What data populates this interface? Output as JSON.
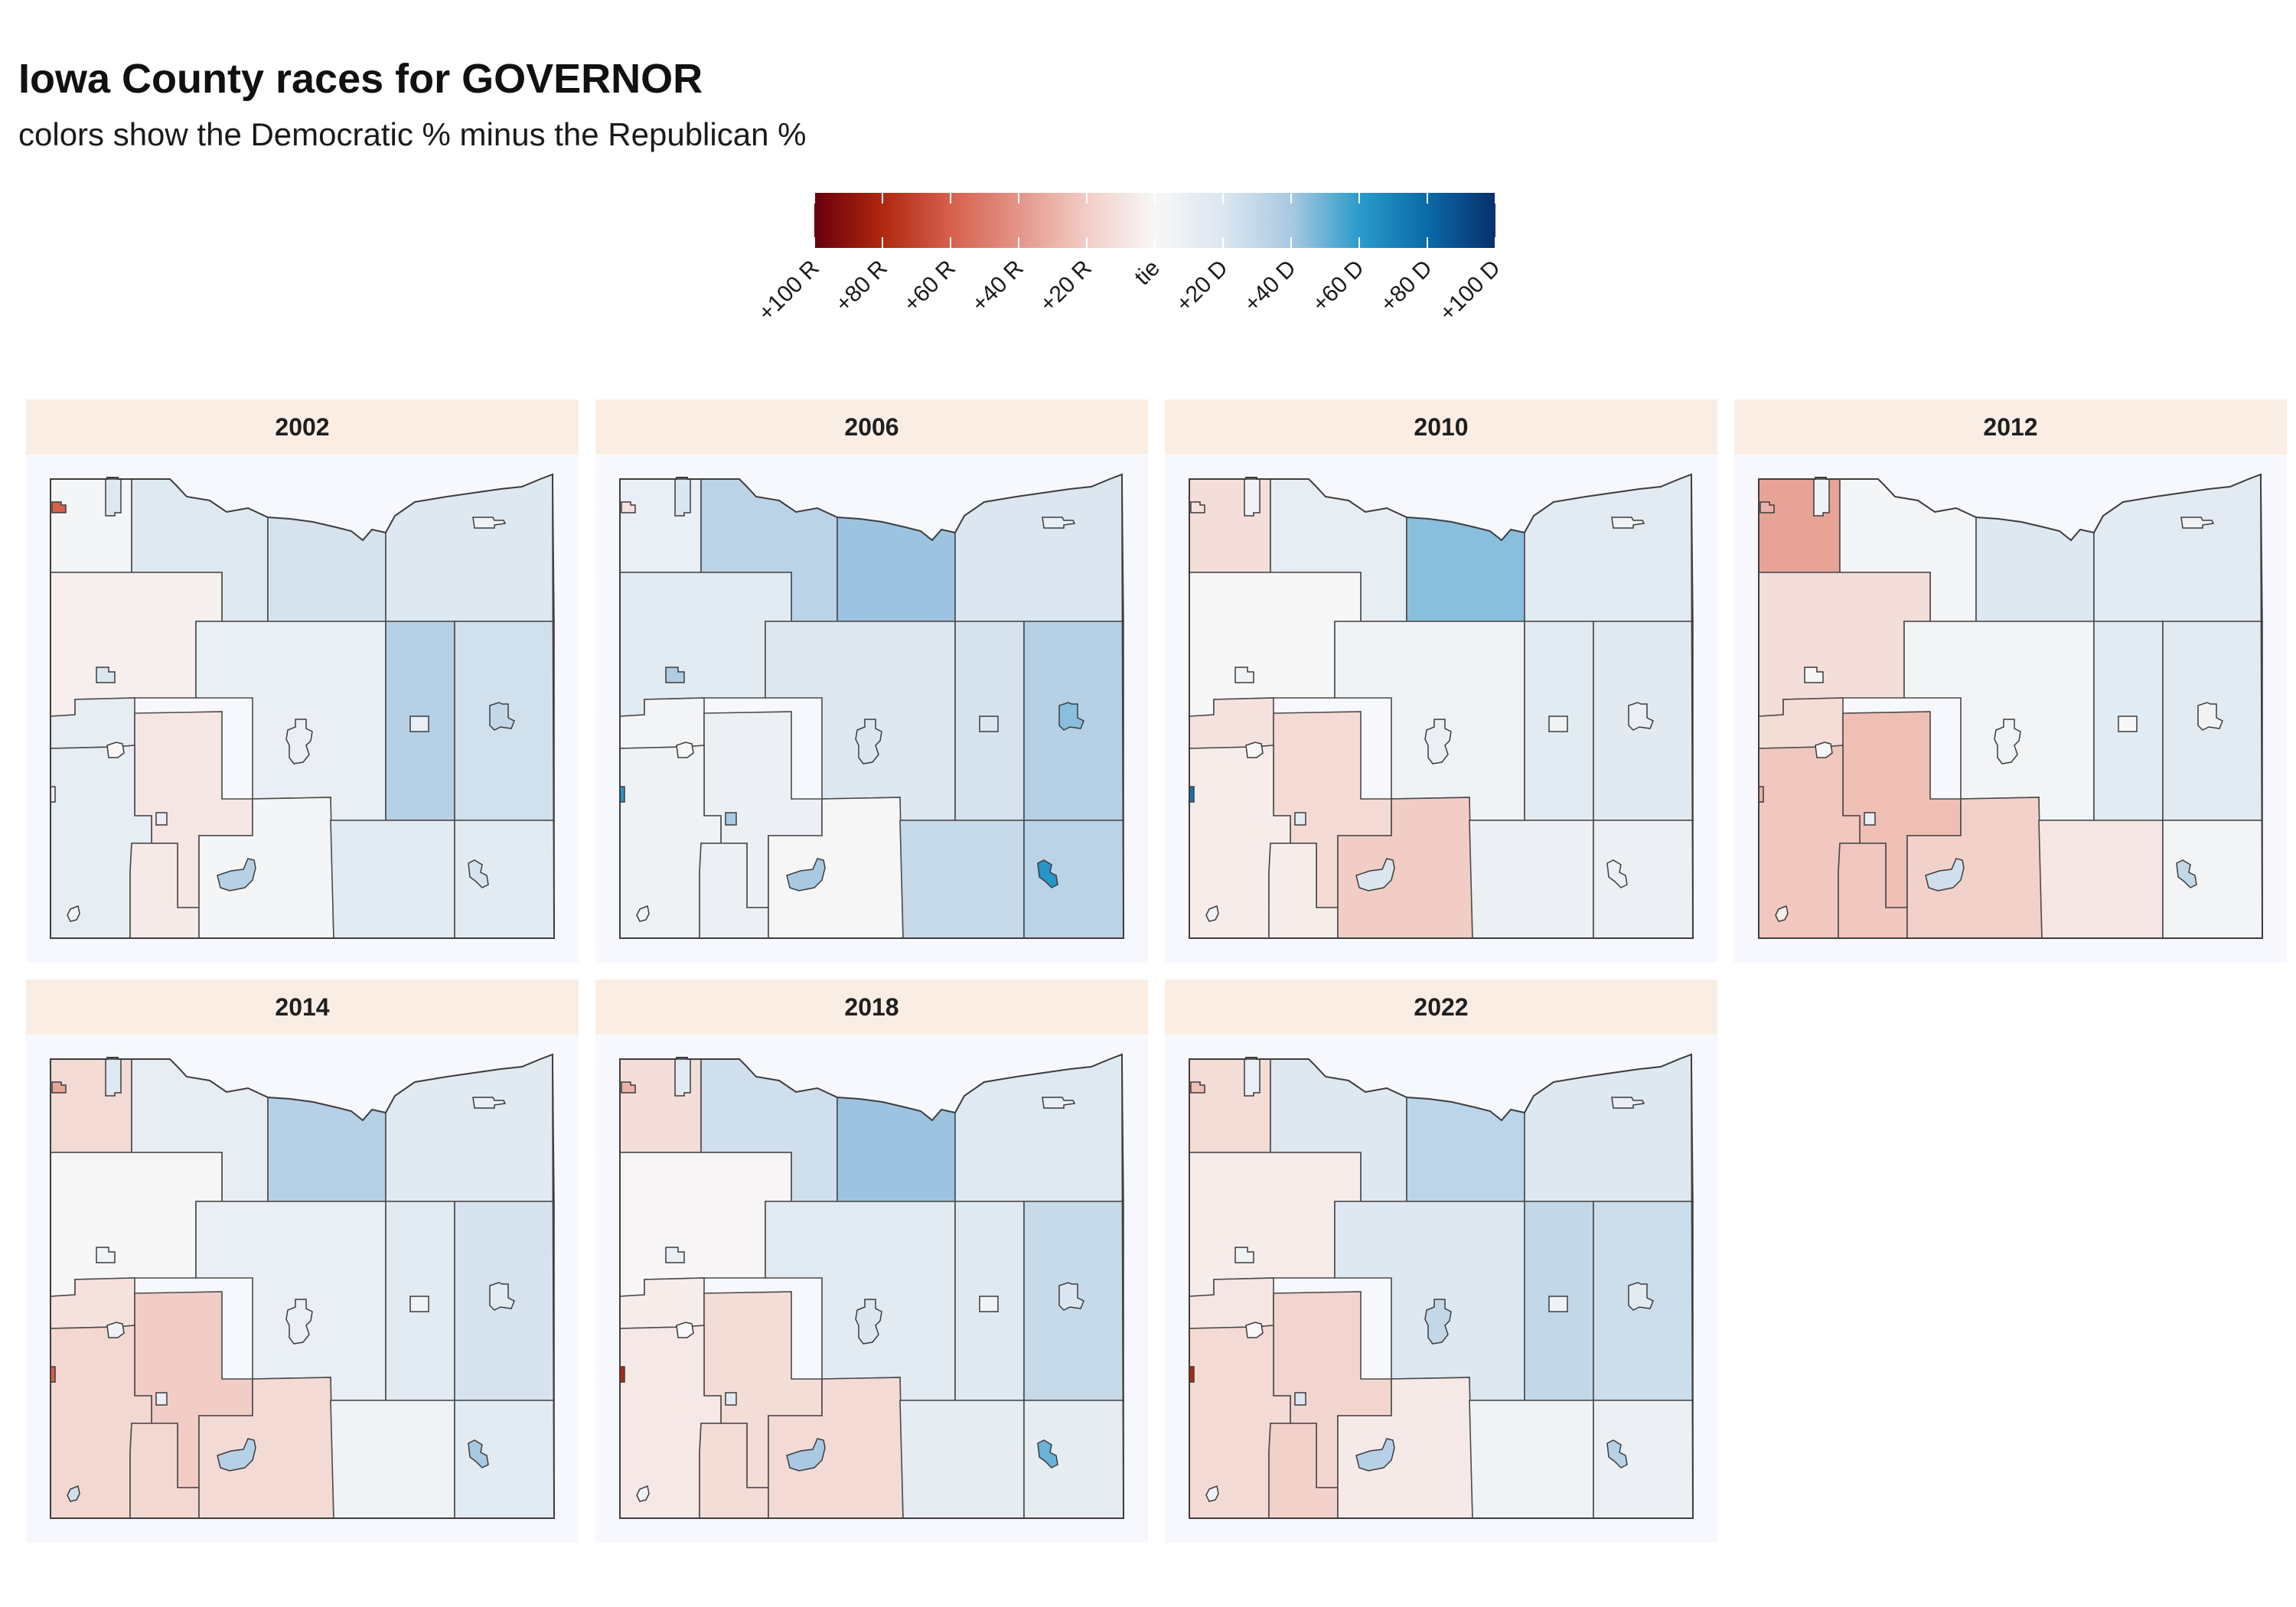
{
  "title": "Iowa County races for GOVERNOR",
  "subtitle": "colors show the Democratic % minus the Republican %",
  "legend": {
    "labels": [
      "+100 R",
      "+80 R",
      "+60 R",
      "+40 R",
      "+20 R",
      "tie",
      "+20 D",
      "+40 D",
      "+60 D",
      "+80 D",
      "+100 D"
    ],
    "values": [
      -100,
      -80,
      -60,
      -40,
      -20,
      0,
      20,
      40,
      60,
      80,
      100
    ],
    "gradient_stops": [
      {
        "v": -100,
        "color": "#67000d"
      },
      {
        "v": -80,
        "color": "#b0280f"
      },
      {
        "v": -60,
        "color": "#d6604d"
      },
      {
        "v": -40,
        "color": "#e49587"
      },
      {
        "v": -20,
        "color": "#f2cdc6"
      },
      {
        "v": 0,
        "color": "#f7f7f7"
      },
      {
        "v": 20,
        "color": "#dbe6f0"
      },
      {
        "v": 40,
        "color": "#a9c9e2"
      },
      {
        "v": 60,
        "color": "#2a9bcb"
      },
      {
        "v": 80,
        "color": "#0a6aa8"
      },
      {
        "v": 100,
        "color": "#08306b"
      }
    ]
  },
  "colors": {
    "strip_background": "#faeee4",
    "map_background": "#f7f8fd",
    "boundary": "#4a4a4a"
  },
  "panels": [
    {
      "year": "2002",
      "margins": {
        "NW": 2,
        "N2": 17,
        "N3": 22,
        "NE": 18,
        "W2": -4,
        "C": 10,
        "E3": 35,
        "E4": 24,
        "W3": 12,
        "C3": -8,
        "SW": 12,
        "S2": -6,
        "S3": 2,
        "SE3": 15,
        "SE4": 14,
        "WE": 14
      },
      "cities": {
        "nw": -60,
        "nwt": 18,
        "w2": 20,
        "c": 10,
        "e3": 10,
        "e4": 30,
        "w3": 0,
        "c3": 10,
        "sc": 35,
        "ne": 5,
        "se": 22,
        "sw": 5,
        "wedge": 10
      }
    },
    {
      "year": "2006",
      "margins": {
        "NW": 10,
        "N2": 33,
        "N3": 42,
        "NE": 20,
        "W2": 14,
        "C": 18,
        "E3": 22,
        "E4": 35,
        "W3": 3,
        "C3": 8,
        "SW": 6,
        "S2": 8,
        "S3": 1,
        "SE3": 28,
        "SE4": 33,
        "WE": 8
      },
      "cities": {
        "nw": -10,
        "nwt": 20,
        "w2": 38,
        "c": 20,
        "e3": 20,
        "e4": 45,
        "w3": 0,
        "c3": 40,
        "sc": 40,
        "ne": 10,
        "se": 62,
        "sw": 5,
        "wedge": 62
      }
    },
    {
      "year": "2010",
      "margins": {
        "NW": -12,
        "N2": 12,
        "N3": 45,
        "NE": 15,
        "W2": 0,
        "C": 5,
        "E3": 14,
        "E4": 16,
        "W3": -10,
        "C3": -14,
        "SW": -5,
        "S2": -5,
        "S3": -20,
        "SE3": 8,
        "SE4": 8,
        "WE": -5
      },
      "cities": {
        "nw": -10,
        "nwt": 5,
        "w2": 5,
        "c": 10,
        "e3": 5,
        "e4": 10,
        "w3": 0,
        "c3": 15,
        "sc": 20,
        "ne": 5,
        "se": 10,
        "sw": 5,
        "wedge": 75
      }
    },
    {
      "year": "2012",
      "margins": {
        "NW": -35,
        "N2": 2,
        "N3": 18,
        "NE": 15,
        "W2": -12,
        "C": 3,
        "E3": 14,
        "E4": 14,
        "W3": -13,
        "C3": -25,
        "SW": -22,
        "S2": -22,
        "S3": -18,
        "SE3": -8,
        "SE4": 3,
        "WE": -20
      },
      "cities": {
        "nw": -30,
        "nwt": 5,
        "w2": 0,
        "c": 5,
        "e3": 0,
        "e4": 5,
        "w3": 0,
        "c3": 10,
        "sc": 25,
        "ne": 5,
        "se": 30,
        "sw": -5,
        "wedge": -30
      }
    },
    {
      "year": "2014",
      "margins": {
        "NW": -14,
        "N2": 12,
        "N3": 35,
        "NE": 16,
        "W2": 1,
        "C": 10,
        "E3": 15,
        "E4": 22,
        "W3": -10,
        "C3": -20,
        "SW": -15,
        "S2": -15,
        "S3": -14,
        "SE3": 5,
        "SE4": 15,
        "WE": -20
      },
      "cities": {
        "nw": -35,
        "nwt": 18,
        "w2": 5,
        "c": 10,
        "e3": 5,
        "e4": 15,
        "w3": 5,
        "c3": 10,
        "sc": 35,
        "ne": 10,
        "se": 40,
        "sw": 25,
        "wedge": -60
      }
    },
    {
      "year": "2018",
      "margins": {
        "NW": -12,
        "N2": 25,
        "N3": 42,
        "NE": 17,
        "W2": -1,
        "C": 14,
        "E3": 17,
        "E4": 28,
        "W3": -5,
        "C3": -13,
        "SW": -7,
        "S2": -13,
        "S3": -14,
        "SE3": 13,
        "SE4": 13,
        "WE": -10
      },
      "cities": {
        "nw": -30,
        "nwt": 15,
        "w2": 10,
        "c": 20,
        "e3": 5,
        "e4": 20,
        "w3": 0,
        "c3": 15,
        "sc": 40,
        "ne": 10,
        "se": 50,
        "sw": 5,
        "wedge": -80
      }
    },
    {
      "year": "2022",
      "margins": {
        "NW": -13,
        "N2": 18,
        "N3": 32,
        "NE": 18,
        "W2": -5,
        "C": 18,
        "E3": 30,
        "E4": 26,
        "W3": -8,
        "C3": -16,
        "SW": -14,
        "S2": -18,
        "S3": -6,
        "SE3": 5,
        "SE4": 8,
        "WE": -14
      },
      "cities": {
        "nw": -25,
        "nwt": 10,
        "w2": 5,
        "c": 30,
        "e3": 5,
        "e4": 15,
        "w3": 0,
        "c3": 20,
        "sc": 35,
        "ne": 10,
        "se": 35,
        "sw": 5,
        "wedge": -80
      }
    }
  ]
}
